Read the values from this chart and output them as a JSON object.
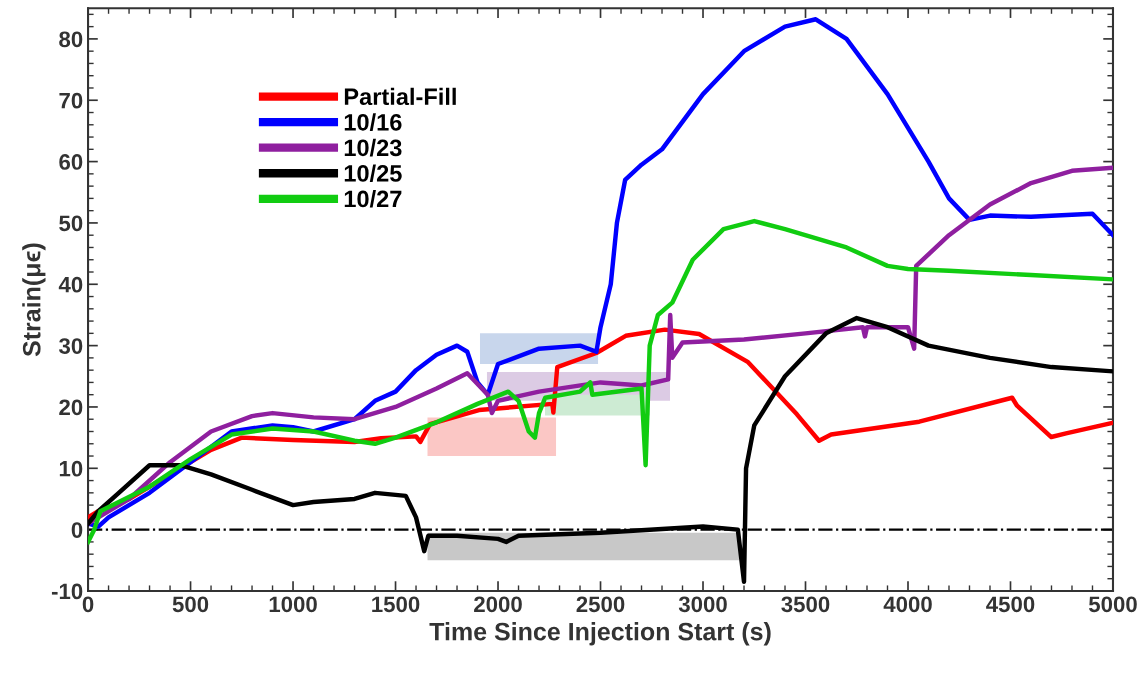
{
  "chart_data": {
    "type": "line",
    "xlabel": "Time Since Injection Start (s)",
    "ylabel": "Strain(μϵ)",
    "xlim": [
      0,
      5000
    ],
    "xticks": [
      0,
      500,
      1000,
      1500,
      2000,
      2500,
      3000,
      3500,
      4000,
      4500,
      5000
    ],
    "ylim": [
      -10,
      85
    ],
    "yticks": [
      -10,
      0,
      10,
      20,
      30,
      40,
      50,
      60,
      70,
      80
    ],
    "grid": false,
    "legend": "top left",
    "marker": "none",
    "line_style": "solid",
    "ref_lines": [
      {
        "axis": "y",
        "value": 0,
        "color": "#000000",
        "line_style": "dashdot"
      }
    ],
    "series": [
      {
        "name": "Partial-Fill",
        "color": "#ff0000",
        "x": [
          0,
          50,
          200,
          400,
          600,
          750,
          1000,
          1300,
          1430,
          1600,
          1621,
          1668,
          1907,
          2265,
          2270,
          2289,
          2480,
          2623,
          2814,
          2981,
          3220,
          3458,
          3566,
          3625,
          4055,
          4508,
          4532,
          4699,
          4771,
          4998
        ],
        "values": [
          2,
          3,
          5,
          9,
          13,
          15,
          14.6,
          14.3,
          14.9,
          15.2,
          14.3,
          17.2,
          19.5,
          20.5,
          19.1,
          26.5,
          28.8,
          31.6,
          32.6,
          31.9,
          27.3,
          18.8,
          14.5,
          15.5,
          17.6,
          21.5,
          20.2,
          15.1,
          15.7,
          17.4
        ]
      },
      {
        "name": "10/16",
        "color": "#0000ff",
        "x": [
          0,
          50,
          100,
          300,
          500,
          700,
          900,
          1000,
          1100,
          1300,
          1400,
          1500,
          1600,
          1700,
          1800,
          1850,
          1900,
          1950,
          2000,
          2200,
          2400,
          2480,
          2500,
          2550,
          2580,
          2620,
          2700,
          2800,
          3000,
          3200,
          3400,
          3550,
          3700,
          3900,
          4100,
          4200,
          4300,
          4400,
          4600,
          4900,
          5000
        ],
        "values": [
          1,
          0.5,
          2,
          6,
          11,
          16,
          17,
          16.7,
          16,
          18,
          21,
          22.5,
          26,
          28.5,
          30,
          29,
          24,
          22,
          27,
          29.5,
          30,
          29,
          33,
          40,
          50,
          57,
          59.5,
          62,
          71,
          78,
          82,
          83.2,
          80,
          71,
          60,
          54,
          50.5,
          51.2,
          51,
          51.5,
          48
        ]
      },
      {
        "name": "10/23",
        "color": "#8f1f9f",
        "x": [
          0,
          50,
          200,
          400,
          600,
          800,
          900,
          1100,
          1300,
          1500,
          1700,
          1850,
          1950,
          1970,
          2000,
          2200,
          2500,
          2700,
          2830,
          2840,
          2850,
          2900,
          3200,
          3500,
          3780,
          3790,
          3800,
          4000,
          4030,
          4040,
          4200,
          4400,
          4600,
          4800,
          5000
        ],
        "values": [
          1,
          2,
          5,
          11,
          16,
          18.5,
          19,
          18.3,
          18,
          20,
          23,
          25.5,
          22,
          19,
          21,
          22.5,
          24,
          23.5,
          24.5,
          35,
          28,
          30.5,
          31,
          32,
          33,
          31.5,
          33,
          33,
          29.5,
          43,
          48,
          53,
          56.5,
          58.5,
          59
        ]
      },
      {
        "name": "10/25",
        "color": "#000000",
        "x": [
          0,
          50,
          150,
          300,
          450,
          600,
          800,
          1000,
          1100,
          1300,
          1400,
          1550,
          1600,
          1640,
          1660,
          1800,
          2000,
          2040,
          2100,
          2500,
          3000,
          3170,
          3200,
          3210,
          3250,
          3400,
          3600,
          3750,
          3900,
          4100,
          4400,
          4700,
          5000
        ],
        "values": [
          1,
          3,
          6,
          10.5,
          10.5,
          9,
          6.5,
          4,
          4.5,
          5,
          6,
          5.5,
          2,
          -3.5,
          -1,
          -1,
          -1.5,
          -2,
          -1,
          -0.5,
          0.5,
          0,
          -8.5,
          10,
          17,
          25,
          32,
          34.5,
          33,
          30,
          28,
          26.5,
          25.8
        ]
      },
      {
        "name": "10/27",
        "color": "#11cc11",
        "x": [
          0,
          30,
          60,
          150,
          300,
          500,
          700,
          900,
          1100,
          1300,
          1400,
          1500,
          1700,
          1900,
          2050,
          2100,
          2150,
          2180,
          2200,
          2230,
          2400,
          2450,
          2460,
          2700,
          2720,
          2740,
          2780,
          2850,
          2950,
          3100,
          3250,
          3400,
          3700,
          3900,
          4000,
          4200,
          4600,
          5000
        ],
        "values": [
          -2,
          0,
          3,
          4.5,
          7,
          11.5,
          15.5,
          16.5,
          16,
          14.5,
          14,
          15,
          17.5,
          20.5,
          22.5,
          21,
          16,
          15,
          19,
          21.5,
          22.5,
          24,
          22,
          23,
          10.5,
          30,
          35,
          37,
          44,
          49,
          50.3,
          49,
          46,
          43,
          42.5,
          42.2,
          41.5,
          40.8
        ]
      },
      {
        "type": "area",
        "color": "#c8d6ec",
        "x": [
          1912,
          2488
        ],
        "values": [
          null,
          null
        ],
        "upper": [
          32,
          32
        ],
        "lower": [
          27,
          27
        ]
      },
      {
        "type": "area",
        "color": "#dccbe4",
        "x": [
          1946,
          2839
        ],
        "values": [
          null,
          null
        ],
        "upper": [
          25.7,
          25.7
        ],
        "lower": [
          21,
          21
        ]
      },
      {
        "type": "area",
        "color": "#fbc7c5",
        "x": [
          1656,
          2283
        ],
        "values": [
          null,
          null
        ],
        "upper": [
          18.3,
          18.3
        ],
        "lower": [
          12,
          12
        ]
      },
      {
        "type": "area",
        "color": "#cdebd3",
        "x": [
          2229,
          2741
        ],
        "values": [
          null,
          null
        ],
        "upper": [
          22,
          22
        ],
        "lower": [
          18.6,
          18.6
        ]
      },
      {
        "type": "area",
        "color": "#c8c8c8",
        "x": [
          1656,
          3176
        ],
        "values": [
          null,
          null
        ],
        "upper": [
          -0.5,
          -0.5
        ],
        "lower": [
          -5,
          -5
        ]
      }
    ]
  }
}
